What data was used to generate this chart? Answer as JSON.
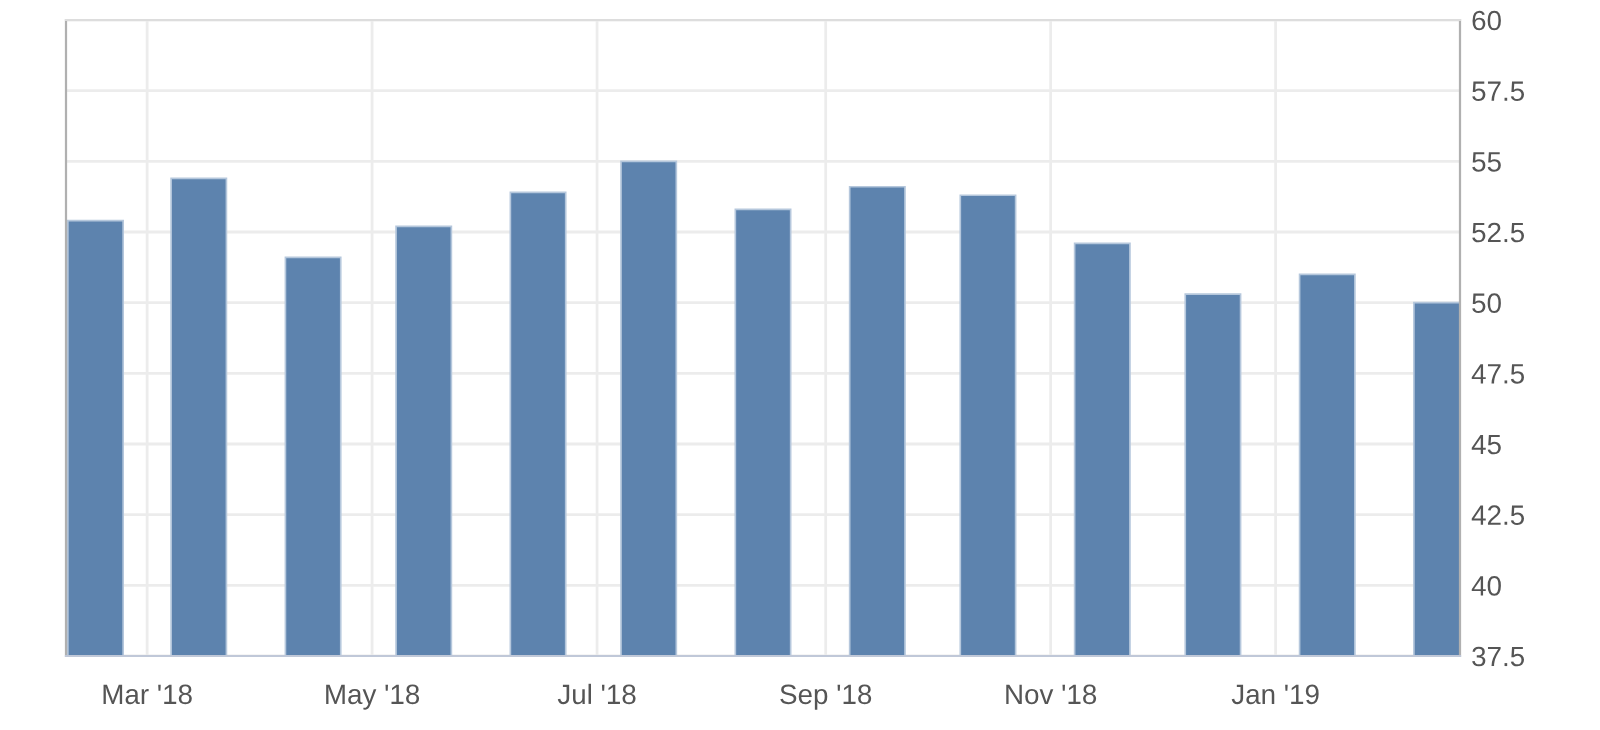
{
  "chart_data": {
    "type": "bar",
    "x": [
      "2018-02-15",
      "2018-03-15",
      "2018-04-15",
      "2018-05-15",
      "2018-06-15",
      "2018-07-15",
      "2018-08-15",
      "2018-09-15",
      "2018-10-15",
      "2018-11-15",
      "2018-12-15",
      "2019-01-15",
      "2019-02-15"
    ],
    "values": [
      52.9,
      54.4,
      51.6,
      52.7,
      53.9,
      55.0,
      53.3,
      54.1,
      53.8,
      52.1,
      50.3,
      51.0,
      50.0
    ],
    "color": "#5d83ae",
    "xlim": [
      "2018-02-07",
      "2019-02-20"
    ],
    "xticks": [
      {
        "value": "2018-03-01",
        "label": "Mar '18"
      },
      {
        "value": "2018-05-01",
        "label": "May '18"
      },
      {
        "value": "2018-07-01",
        "label": "Jul '18"
      },
      {
        "value": "2018-09-01",
        "label": "Sep '18"
      },
      {
        "value": "2018-11-01",
        "label": "Nov '18"
      },
      {
        "value": "2019-01-01",
        "label": "Jan '19"
      }
    ],
    "ylim": [
      37.5,
      60
    ],
    "yticks": [
      37.5,
      40,
      42.5,
      45,
      47.5,
      50,
      52.5,
      55,
      57.5,
      60
    ],
    "grid": true
  }
}
